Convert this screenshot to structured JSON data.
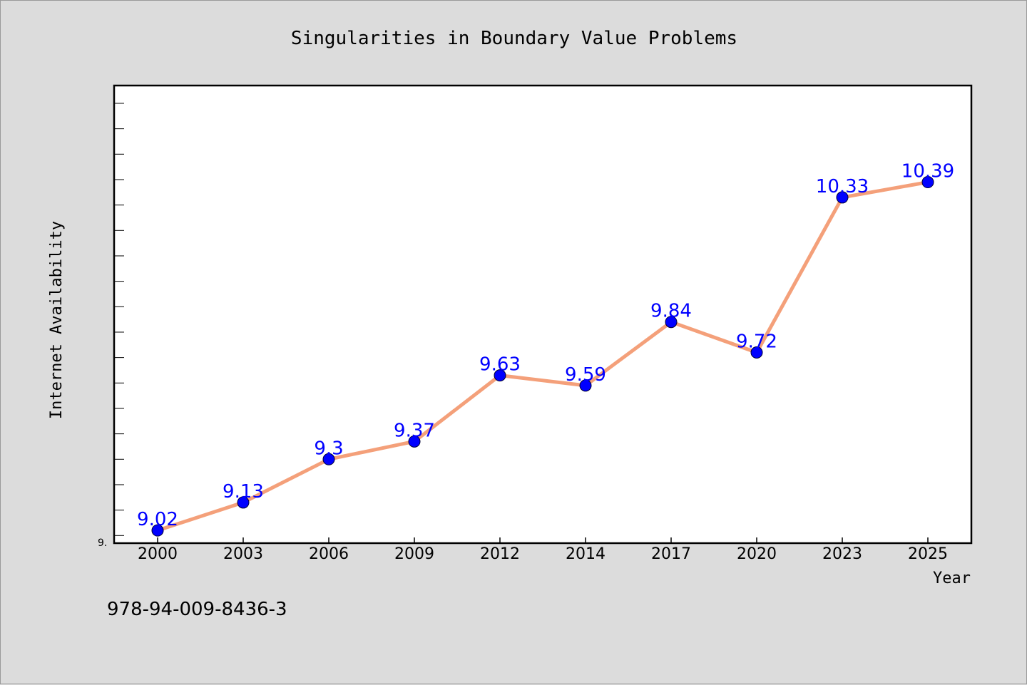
{
  "chart_data": {
    "type": "line",
    "title": "Singularities in Boundary Value Problems",
    "xlabel": "Year",
    "ylabel": "Internet Availability",
    "categories": [
      "2000",
      "2003",
      "2006",
      "2009",
      "2012",
      "2014",
      "2017",
      "2020",
      "2023",
      "2025"
    ],
    "series": [
      {
        "values": [
          9.02,
          9.13,
          9.3,
          9.37,
          9.63,
          9.59,
          9.84,
          9.72,
          10.33,
          10.39
        ],
        "labels": [
          "9.02",
          "9.13",
          "9.3",
          "9.37",
          "9.63",
          "9.59",
          "9.84",
          "9.72",
          "10.33",
          "10.39"
        ]
      }
    ],
    "ylim": [
      8.97,
      10.77
    ],
    "ytick_label": "9.",
    "ytick_step": 0.1,
    "grid": false,
    "line_color": "#f4a07a",
    "marker_color": "#0000ff",
    "label_color": "#0000ff",
    "background_color": "#dcdcdc",
    "plot_background_color": "#ffffff"
  },
  "footer": {
    "isbn": "978-94-009-8436-3"
  }
}
